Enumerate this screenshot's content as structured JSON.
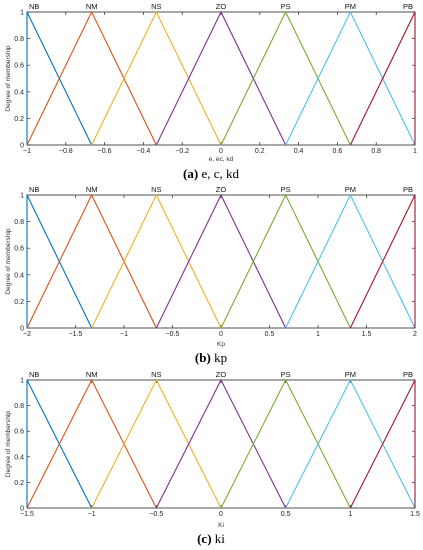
{
  "chart_data": [
    {
      "type": "line",
      "caption_letter": "(a)",
      "caption_text": " e, c, kd",
      "xlabel": "e,  ec,  kd",
      "ylabel": "Degree of membership",
      "xlim": [
        -1,
        1
      ],
      "ylim": [
        0,
        1
      ],
      "x_ticks": [
        -1,
        -0.8,
        -0.6,
        -0.4,
        -0.2,
        0,
        0.2,
        0.4,
        0.6,
        0.8,
        1
      ],
      "x_tick_labels": [
        "−1",
        "−0.8",
        "−0.6",
        "−0.4",
        "−0.2",
        "0",
        "0.2",
        "0.4",
        "0.6",
        "0.8",
        "1"
      ],
      "y_ticks": [
        0,
        0.2,
        0.4,
        0.6,
        0.8,
        1
      ],
      "y_tick_labels": [
        "0",
        "0.2",
        "0.4",
        "0.6",
        "0.8",
        "1"
      ],
      "series": [
        {
          "name": "NB",
          "color": "#0072BD",
          "x": [
            -1,
            -1,
            -0.6667
          ],
          "y": [
            0,
            1,
            0
          ]
        },
        {
          "name": "NM",
          "color": "#D95319",
          "x": [
            -1,
            -0.6667,
            -0.3333
          ],
          "y": [
            0,
            1,
            0
          ]
        },
        {
          "name": "NS",
          "color": "#EDB120",
          "x": [
            -0.6667,
            -0.3333,
            0
          ],
          "y": [
            0,
            1,
            0
          ]
        },
        {
          "name": "ZO",
          "color": "#7E2F8E",
          "x": [
            -0.3333,
            0,
            0.3333
          ],
          "y": [
            0,
            1,
            0
          ]
        },
        {
          "name": "PS",
          "color": "#77AC30",
          "x": [
            0,
            0.3333,
            0.6667
          ],
          "y": [
            0,
            1,
            0
          ]
        },
        {
          "name": "PM",
          "color": "#4DBEEE",
          "x": [
            0.3333,
            0.6667,
            1
          ],
          "y": [
            0,
            1,
            0
          ]
        },
        {
          "name": "PB",
          "color": "#A2142F",
          "x": [
            0.6667,
            1,
            1
          ],
          "y": [
            0,
            1,
            0
          ]
        }
      ]
    },
    {
      "type": "line",
      "caption_letter": "(b)",
      "caption_text": " kp",
      "xlabel": "Kp",
      "ylabel": "Degree of membership",
      "xlim": [
        -2,
        2
      ],
      "ylim": [
        0,
        1
      ],
      "x_ticks": [
        -2,
        -1.5,
        -1,
        -0.5,
        0,
        0.5,
        1,
        1.5,
        2
      ],
      "x_tick_labels": [
        "−2",
        "−1.5",
        "−1",
        "−0.5",
        "0",
        "0.5",
        "1",
        "1.5",
        "2"
      ],
      "y_ticks": [
        0,
        0.2,
        0.4,
        0.6,
        0.8,
        1
      ],
      "y_tick_labels": [
        "0",
        "0.2",
        "0.4",
        "0.6",
        "0.8",
        "1"
      ],
      "series": [
        {
          "name": "NB",
          "color": "#0072BD",
          "x": [
            -2,
            -2,
            -1.3333
          ],
          "y": [
            0,
            1,
            0
          ]
        },
        {
          "name": "NM",
          "color": "#D95319",
          "x": [
            -2,
            -1.3333,
            -0.6667
          ],
          "y": [
            0,
            1,
            0
          ]
        },
        {
          "name": "NS",
          "color": "#EDB120",
          "x": [
            -1.3333,
            -0.6667,
            0
          ],
          "y": [
            0,
            1,
            0
          ]
        },
        {
          "name": "ZO",
          "color": "#7E2F8E",
          "x": [
            -0.6667,
            0,
            0.6667
          ],
          "y": [
            0,
            1,
            0
          ]
        },
        {
          "name": "PS",
          "color": "#77AC30",
          "x": [
            0,
            0.6667,
            1.3333
          ],
          "y": [
            0,
            1,
            0
          ]
        },
        {
          "name": "PM",
          "color": "#4DBEEE",
          "x": [
            0.6667,
            1.3333,
            2
          ],
          "y": [
            0,
            1,
            0
          ]
        },
        {
          "name": "PB",
          "color": "#A2142F",
          "x": [
            1.3333,
            2,
            2
          ],
          "y": [
            0,
            1,
            0
          ]
        }
      ]
    },
    {
      "type": "line",
      "caption_letter": "(c)",
      "caption_text": " ki",
      "xlabel": "Ki",
      "ylabel": "Degree of membership",
      "xlim": [
        -1.5,
        1.5
      ],
      "ylim": [
        0,
        1
      ],
      "x_ticks": [
        -1.5,
        -1,
        -0.5,
        0,
        0.5,
        1,
        1.5
      ],
      "x_tick_labels": [
        "−1.5",
        "−1",
        "−0.5",
        "0",
        "0.5",
        "1",
        "1.5"
      ],
      "y_ticks": [
        0,
        0.2,
        0.4,
        0.6,
        0.8,
        1
      ],
      "y_tick_labels": [
        "0",
        "0.2",
        "0.4",
        "0.6",
        "0.8",
        "1"
      ],
      "series": [
        {
          "name": "NB",
          "color": "#0072BD",
          "x": [
            -1.5,
            -1.5,
            -1
          ],
          "y": [
            0,
            1,
            0
          ]
        },
        {
          "name": "NM",
          "color": "#D95319",
          "x": [
            -1.5,
            -1,
            -0.5
          ],
          "y": [
            0,
            1,
            0
          ]
        },
        {
          "name": "NS",
          "color": "#EDB120",
          "x": [
            -1,
            -0.5,
            0
          ],
          "y": [
            0,
            1,
            0
          ]
        },
        {
          "name": "ZO",
          "color": "#7E2F8E",
          "x": [
            -0.5,
            0,
            0.5
          ],
          "y": [
            0,
            1,
            0
          ]
        },
        {
          "name": "PS",
          "color": "#77AC30",
          "x": [
            0,
            0.5,
            1
          ],
          "y": [
            0,
            1,
            0
          ]
        },
        {
          "name": "PM",
          "color": "#4DBEEE",
          "x": [
            0.5,
            1,
            1.5
          ],
          "y": [
            0,
            1,
            0
          ]
        },
        {
          "name": "PB",
          "color": "#A2142F",
          "x": [
            1,
            1.5,
            1.5
          ],
          "y": [
            0,
            1,
            0
          ]
        }
      ]
    }
  ]
}
